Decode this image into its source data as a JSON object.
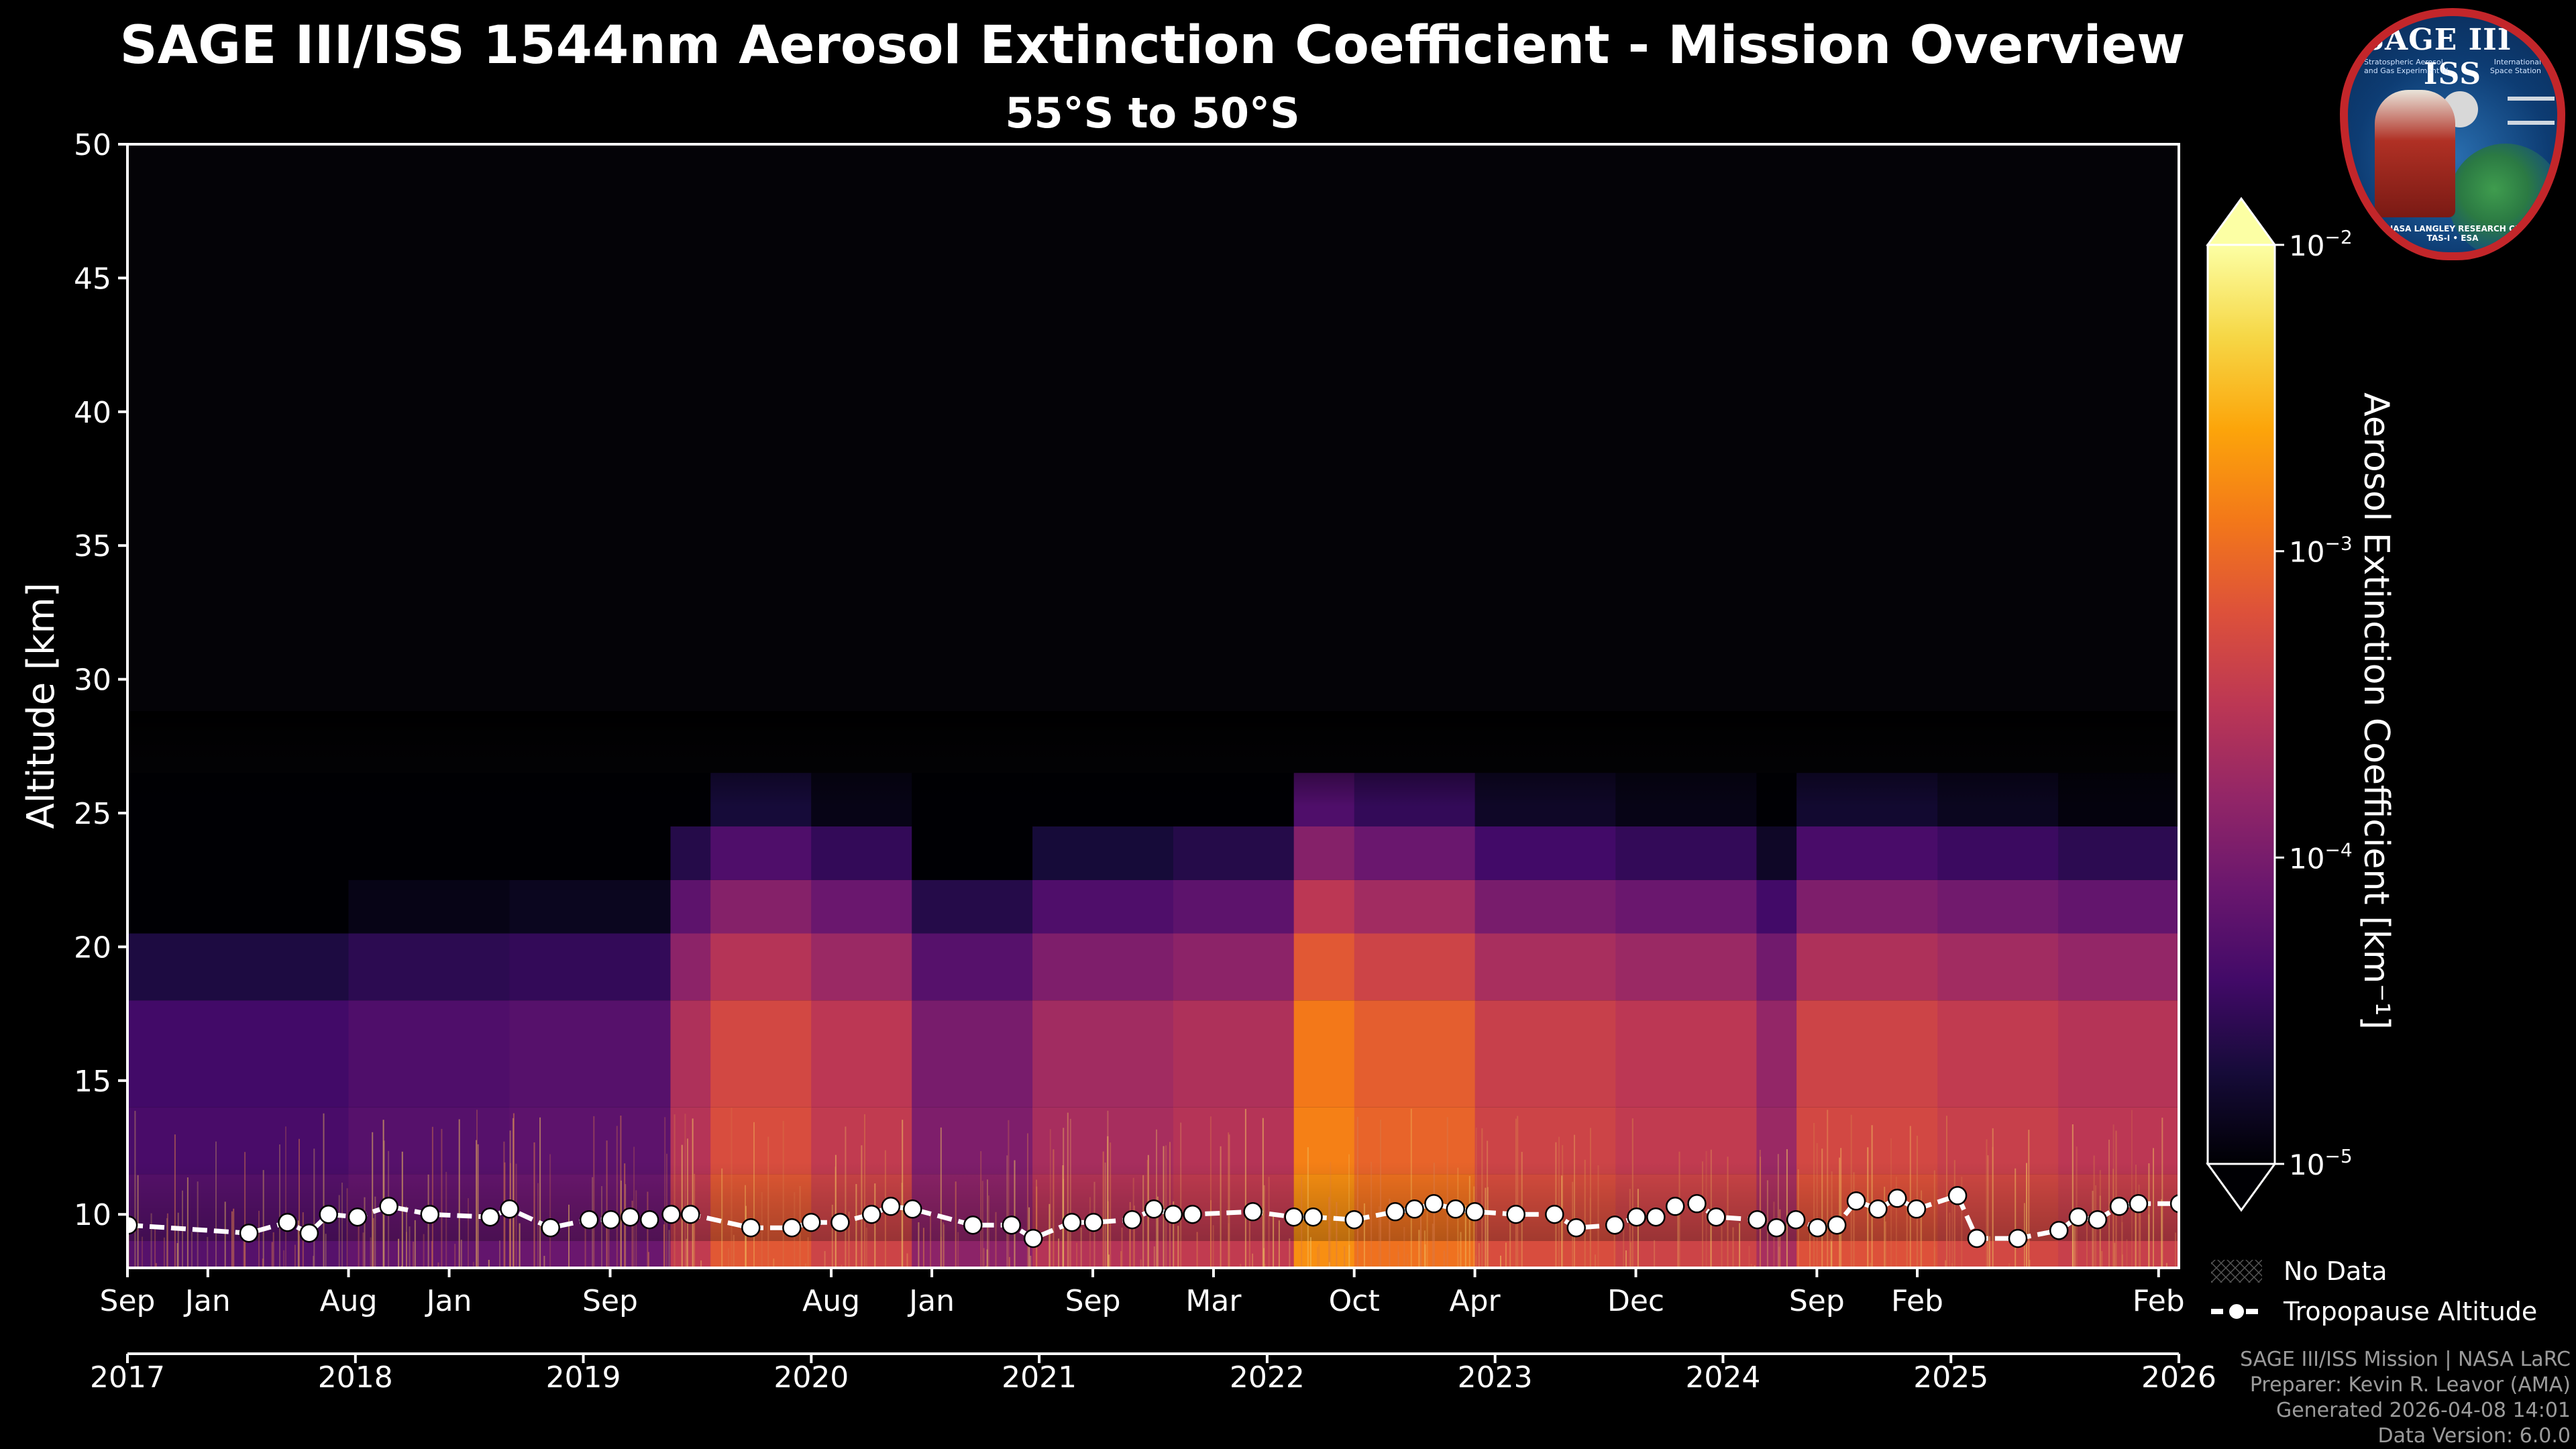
{
  "page": {
    "title": "SAGE III/ISS 1544nm Aerosol Extinction Coefficient - Mission Overview",
    "subtitle": "55°S to 50°S",
    "footer": [
      "SAGE III/ISS Mission | NASA LaRC",
      "Preparer: Kevin R. Leavor (AMA)",
      "Generated 2026-04-08 14:01",
      "Data Version: 6.0.0"
    ],
    "logo": {
      "banner": "SAGE III • ISS",
      "left_sub": "Stratospheric Aerosol and Gas Experiment III",
      "right_sub": "International Space Station",
      "ring": "BALL • NASA LANGLEY RESEARCH CENTER • TAS-I • ESA"
    }
  },
  "chart_data": {
    "type": "heatmap",
    "title": "SAGE III/ISS 1544nm Aerosol Extinction Coefficient - Mission Overview",
    "subtitle": "55°S to 50°S",
    "ylabel": "Altitude [km]",
    "ylim": [
      8,
      50
    ],
    "yticks": [
      10,
      15,
      20,
      25,
      30,
      35,
      40,
      45,
      50
    ],
    "xlim": [
      2017.667,
      2026.167
    ],
    "month_ticks": [
      {
        "label": "Sep",
        "t": 2017.667
      },
      {
        "label": "Jan",
        "t": 2018.0
      },
      {
        "label": "Aug",
        "t": 2018.583
      },
      {
        "label": "Jan",
        "t": 2019.0
      },
      {
        "label": "Sep",
        "t": 2019.667
      },
      {
        "label": "Aug",
        "t": 2020.583
      },
      {
        "label": "Jan",
        "t": 2021.0
      },
      {
        "label": "Sep",
        "t": 2021.667
      },
      {
        "label": "Mar",
        "t": 2022.167
      },
      {
        "label": "Oct",
        "t": 2022.75
      },
      {
        "label": "Apr",
        "t": 2023.25
      },
      {
        "label": "Dec",
        "t": 2023.917
      },
      {
        "label": "Sep",
        "t": 2024.667
      },
      {
        "label": "Feb",
        "t": 2025.083
      },
      {
        "label": "Feb",
        "t": 2026.083
      }
    ],
    "year_ticks": [
      {
        "label": "2017",
        "t": 2017.0
      },
      {
        "label": "2018",
        "t": 2018.0
      },
      {
        "label": "2019",
        "t": 2019.0
      },
      {
        "label": "2020",
        "t": 2020.0
      },
      {
        "label": "2021",
        "t": 2021.0
      },
      {
        "label": "2022",
        "t": 2022.0
      },
      {
        "label": "2023",
        "t": 2023.0
      },
      {
        "label": "2024",
        "t": 2024.0
      },
      {
        "label": "2025",
        "t": 2025.0
      },
      {
        "label": "2026",
        "t": 2026.0
      }
    ],
    "colorbar": {
      "label": "Aerosol Extinction Coefficient [km⁻¹]",
      "scale": "log",
      "range": [
        1e-05,
        0.01
      ],
      "ticks": [
        {
          "base": "10",
          "exp": "−5",
          "value": 1e-05
        },
        {
          "base": "10",
          "exp": "−4",
          "value": 0.0001
        },
        {
          "base": "10",
          "exp": "−3",
          "value": 0.001
        },
        {
          "base": "10",
          "exp": "−2",
          "value": 0.01
        }
      ],
      "colormap": "inferno",
      "extend": "both"
    },
    "legend": [
      {
        "label": "No Data",
        "marker": "hatch"
      },
      {
        "label": "Tropopause Altitude",
        "marker": "white dashed line with circles"
      }
    ],
    "layer_top_km": 22.5,
    "layer_bottom_km": 11.5,
    "segments": [
      {
        "start": 2017.667,
        "end": 2018.583,
        "log_ext": -4.4
      },
      {
        "start": 2018.583,
        "end": 2019.25,
        "log_ext": -4.3
      },
      {
        "start": 2019.25,
        "end": 2019.917,
        "log_ext": -4.25
      },
      {
        "start": 2019.917,
        "end": 2020.083,
        "log_ext": -3.6
      },
      {
        "start": 2020.083,
        "end": 2020.5,
        "log_ext": -3.3
      },
      {
        "start": 2020.5,
        "end": 2020.917,
        "log_ext": -3.5
      },
      {
        "start": 2020.917,
        "end": 2021.417,
        "log_ext": -4.0
      },
      {
        "start": 2021.417,
        "end": 2022.0,
        "log_ext": -3.7
      },
      {
        "start": 2022.0,
        "end": 2022.5,
        "log_ext": -3.6
      },
      {
        "start": 2022.5,
        "end": 2022.75,
        "log_ext": -2.9
      },
      {
        "start": 2022.75,
        "end": 2023.25,
        "log_ext": -3.1
      },
      {
        "start": 2023.25,
        "end": 2023.833,
        "log_ext": -3.4
      },
      {
        "start": 2023.833,
        "end": 2024.417,
        "log_ext": -3.5
      },
      {
        "start": 2024.417,
        "end": 2024.583,
        "log_ext": -3.8
      },
      {
        "start": 2024.583,
        "end": 2025.167,
        "log_ext": -3.35
      },
      {
        "start": 2025.167,
        "end": 2025.667,
        "log_ext": -3.45
      },
      {
        "start": 2025.667,
        "end": 2026.167,
        "log_ext": -3.55
      }
    ],
    "tropopause": [
      {
        "t": 2017.67,
        "km": 9.6
      },
      {
        "t": 2018.17,
        "km": 9.3
      },
      {
        "t": 2018.33,
        "km": 9.7
      },
      {
        "t": 2018.42,
        "km": 9.3
      },
      {
        "t": 2018.5,
        "km": 10.0
      },
      {
        "t": 2018.62,
        "km": 9.9
      },
      {
        "t": 2018.75,
        "km": 10.3
      },
      {
        "t": 2018.92,
        "km": 10.0
      },
      {
        "t": 2019.17,
        "km": 9.9
      },
      {
        "t": 2019.25,
        "km": 10.2
      },
      {
        "t": 2019.42,
        "km": 9.5
      },
      {
        "t": 2019.58,
        "km": 9.8
      },
      {
        "t": 2019.67,
        "km": 9.8
      },
      {
        "t": 2019.75,
        "km": 9.9
      },
      {
        "t": 2019.83,
        "km": 9.8
      },
      {
        "t": 2019.92,
        "km": 10.0
      },
      {
        "t": 2020.0,
        "km": 10.0
      },
      {
        "t": 2020.25,
        "km": 9.5
      },
      {
        "t": 2020.42,
        "km": 9.5
      },
      {
        "t": 2020.5,
        "km": 9.7
      },
      {
        "t": 2020.62,
        "km": 9.7
      },
      {
        "t": 2020.75,
        "km": 10.0
      },
      {
        "t": 2020.83,
        "km": 10.3
      },
      {
        "t": 2020.92,
        "km": 10.2
      },
      {
        "t": 2021.17,
        "km": 9.6
      },
      {
        "t": 2021.33,
        "km": 9.6
      },
      {
        "t": 2021.42,
        "km": 9.1
      },
      {
        "t": 2021.58,
        "km": 9.7
      },
      {
        "t": 2021.67,
        "km": 9.7
      },
      {
        "t": 2021.83,
        "km": 9.8
      },
      {
        "t": 2021.92,
        "km": 10.2
      },
      {
        "t": 2022.0,
        "km": 10.0
      },
      {
        "t": 2022.08,
        "km": 10.0
      },
      {
        "t": 2022.33,
        "km": 10.1
      },
      {
        "t": 2022.5,
        "km": 9.9
      },
      {
        "t": 2022.58,
        "km": 9.9
      },
      {
        "t": 2022.75,
        "km": 9.8
      },
      {
        "t": 2022.92,
        "km": 10.1
      },
      {
        "t": 2023.0,
        "km": 10.2
      },
      {
        "t": 2023.08,
        "km": 10.4
      },
      {
        "t": 2023.17,
        "km": 10.2
      },
      {
        "t": 2023.25,
        "km": 10.1
      },
      {
        "t": 2023.42,
        "km": 10.0
      },
      {
        "t": 2023.58,
        "km": 10.0
      },
      {
        "t": 2023.67,
        "km": 9.5
      },
      {
        "t": 2023.83,
        "km": 9.6
      },
      {
        "t": 2023.92,
        "km": 9.9
      },
      {
        "t": 2024.0,
        "km": 9.9
      },
      {
        "t": 2024.08,
        "km": 10.3
      },
      {
        "t": 2024.17,
        "km": 10.4
      },
      {
        "t": 2024.25,
        "km": 9.9
      },
      {
        "t": 2024.42,
        "km": 9.8
      },
      {
        "t": 2024.5,
        "km": 9.5
      },
      {
        "t": 2024.58,
        "km": 9.8
      },
      {
        "t": 2024.67,
        "km": 9.5
      },
      {
        "t": 2024.75,
        "km": 9.6
      },
      {
        "t": 2024.83,
        "km": 10.5
      },
      {
        "t": 2024.92,
        "km": 10.2
      },
      {
        "t": 2025.0,
        "km": 10.6
      },
      {
        "t": 2025.08,
        "km": 10.2
      },
      {
        "t": 2025.25,
        "km": 10.7
      },
      {
        "t": 2025.33,
        "km": 9.1
      },
      {
        "t": 2025.5,
        "km": 9.1
      },
      {
        "t": 2025.67,
        "km": 9.4
      },
      {
        "t": 2025.75,
        "km": 9.9
      },
      {
        "t": 2025.83,
        "km": 9.8
      },
      {
        "t": 2025.92,
        "km": 10.3
      },
      {
        "t": 2026.0,
        "km": 10.4
      },
      {
        "t": 2026.17,
        "km": 10.4
      }
    ]
  }
}
